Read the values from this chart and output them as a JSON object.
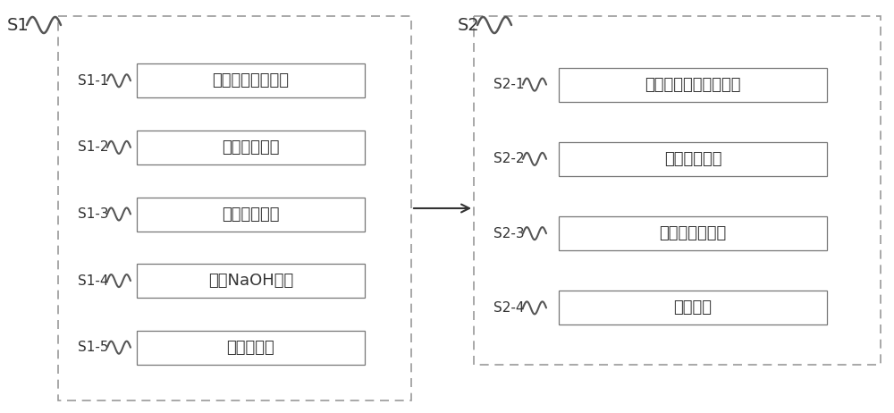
{
  "bg_color": "#ffffff",
  "box_color": "#ffffff",
  "box_edge_color": "#777777",
  "panel_border_color": "#999999",
  "text_color": "#333333",
  "arrow_color": "#333333",
  "wave_color": "#555555",
  "s1_label": "S1",
  "s2_label": "S2",
  "s1_steps": [
    {
      "label": "S1-1",
      "text": "配置胶原的酸溶液"
    },
    {
      "label": "S1-2",
      "text": "加入钙盐溶液"
    },
    {
      "label": "S1-3",
      "text": "加入磷酸溶液"
    },
    {
      "label": "S1-4",
      "text": "加入NaOH溶液"
    },
    {
      "label": "S1-5",
      "text": "离心、干燥"
    }
  ],
  "s2_steps": [
    {
      "label": "S2-1",
      "text": "配置高分子聚合物溶液"
    },
    {
      "label": "S2-2",
      "text": "加入矿化胶原"
    },
    {
      "label": "S2-3",
      "text": "加入蛋黄卵磷脂"
    },
    {
      "label": "S2-4",
      "text": "灌模干燥"
    }
  ],
  "font_size_main_label": 14,
  "font_size_step_label": 11,
  "font_size_box_text": 13
}
